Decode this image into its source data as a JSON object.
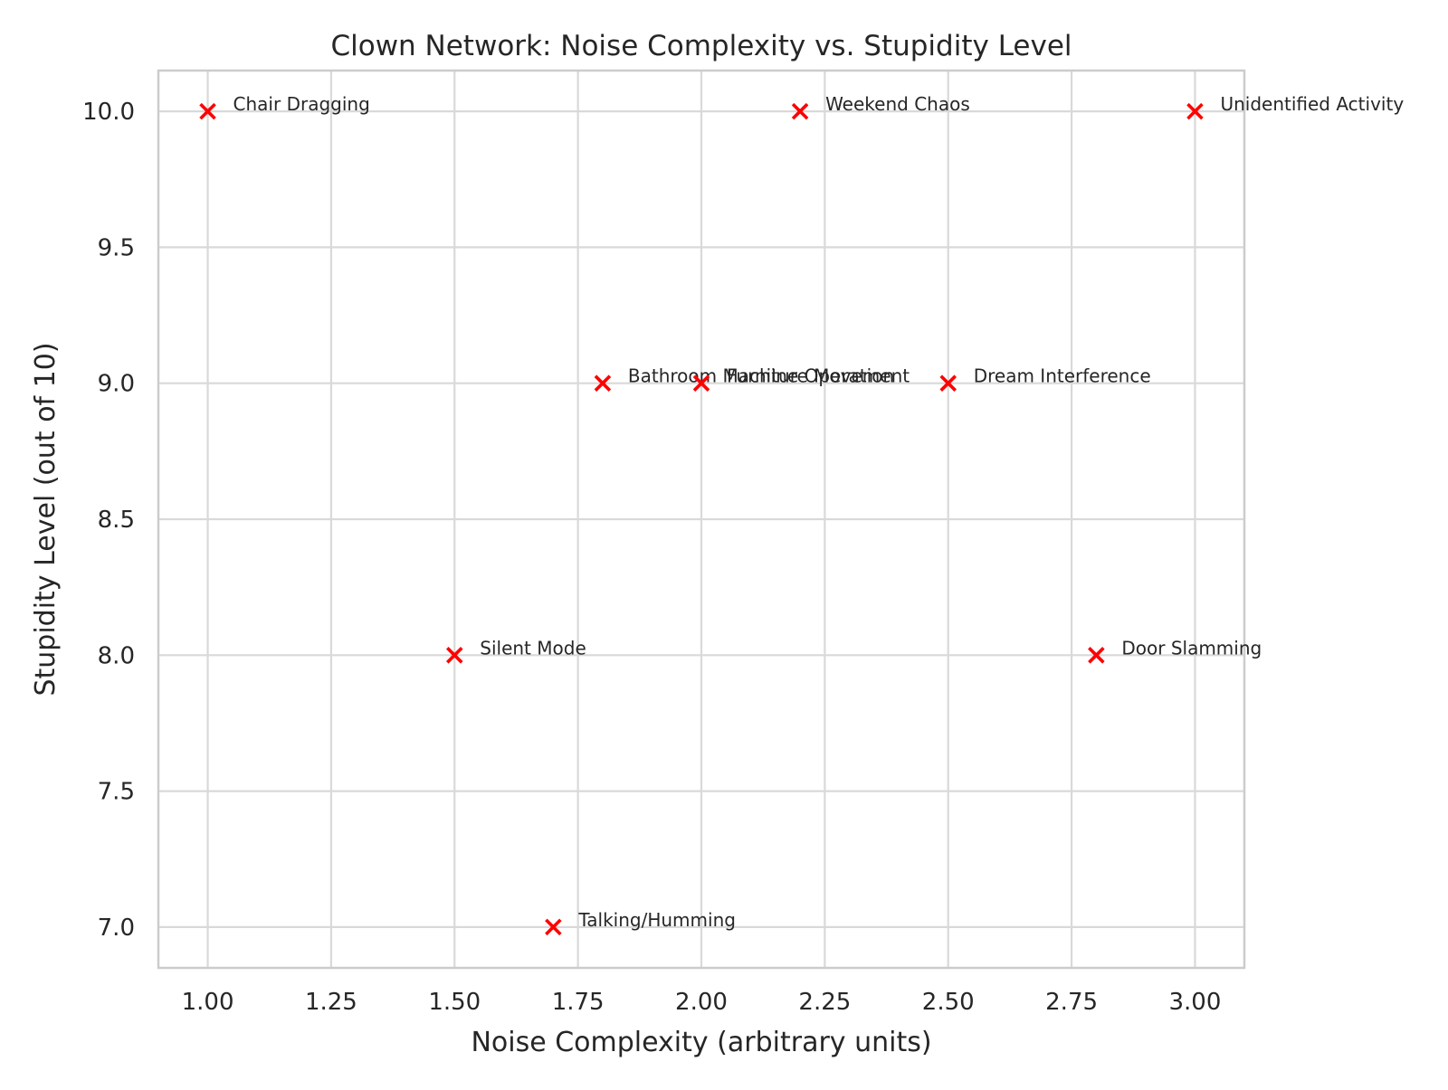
{
  "chart_data": {
    "type": "scatter",
    "title": "Clown Network: Noise Complexity vs. Stupidity Level",
    "xlabel": "Noise Complexity (arbitrary units)",
    "ylabel": "Stupidity Level (out of 10)",
    "xlim": [
      0.9,
      3.1
    ],
    "ylim": [
      6.85,
      10.15
    ],
    "x_ticks": [
      "1.00",
      "1.25",
      "1.50",
      "1.75",
      "2.00",
      "2.25",
      "2.50",
      "2.75",
      "3.00"
    ],
    "y_ticks": [
      "7.0",
      "7.5",
      "8.0",
      "8.5",
      "9.0",
      "9.5",
      "10.0"
    ],
    "grid": true,
    "marker": "x",
    "marker_color": "#ff0000",
    "points": [
      {
        "label": "Chair Dragging",
        "x": 1.0,
        "y": 10
      },
      {
        "label": "Weekend Chaos",
        "x": 2.2,
        "y": 10
      },
      {
        "label": "Unidentified Activity",
        "x": 3.0,
        "y": 10
      },
      {
        "label": "Bathroom Machine Operation",
        "x": 1.8,
        "y": 9
      },
      {
        "label": "Furniture Movement",
        "x": 2.0,
        "y": 9
      },
      {
        "label": "Dream Interference",
        "x": 2.5,
        "y": 9
      },
      {
        "label": "Silent Mode",
        "x": 1.5,
        "y": 8
      },
      {
        "label": "Door Slamming",
        "x": 2.8,
        "y": 8
      },
      {
        "label": "Talking/Humming",
        "x": 1.7,
        "y": 7
      }
    ]
  }
}
